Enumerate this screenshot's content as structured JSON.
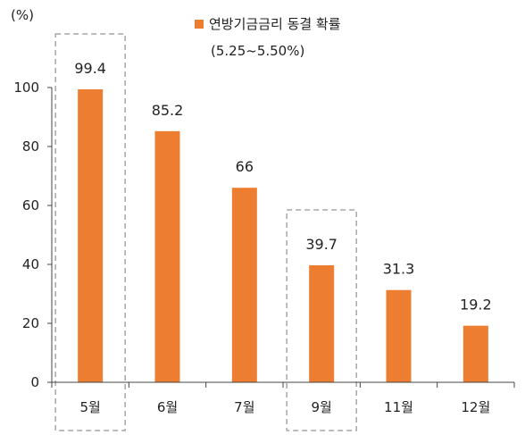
{
  "chart_data": {
    "type": "bar",
    "unit_label": "(%)",
    "categories": [
      "5월",
      "6월",
      "7월",
      "9월",
      "11월",
      "12월"
    ],
    "series": [
      {
        "name": "연방기금금리 동결 확률",
        "values": [
          99.4,
          85.2,
          66,
          39.7,
          31.3,
          19.2
        ]
      }
    ],
    "legend": {
      "name": "연방기금금리 동결 확률",
      "subtitle": "(5.25~5.50%)",
      "position": "top-center"
    },
    "value_labels": [
      "99.4",
      "85.2",
      "66",
      "39.7",
      "31.3",
      "19.2"
    ],
    "y_ticks": [
      "0",
      "20",
      "40",
      "60",
      "80",
      "100"
    ],
    "ylim": [
      0,
      100
    ],
    "highlighted_categories": [
      "5월",
      "9월"
    ],
    "bar_color": "#ED7D31",
    "highlight_border_color": "#A6A6A6",
    "grid": false
  }
}
